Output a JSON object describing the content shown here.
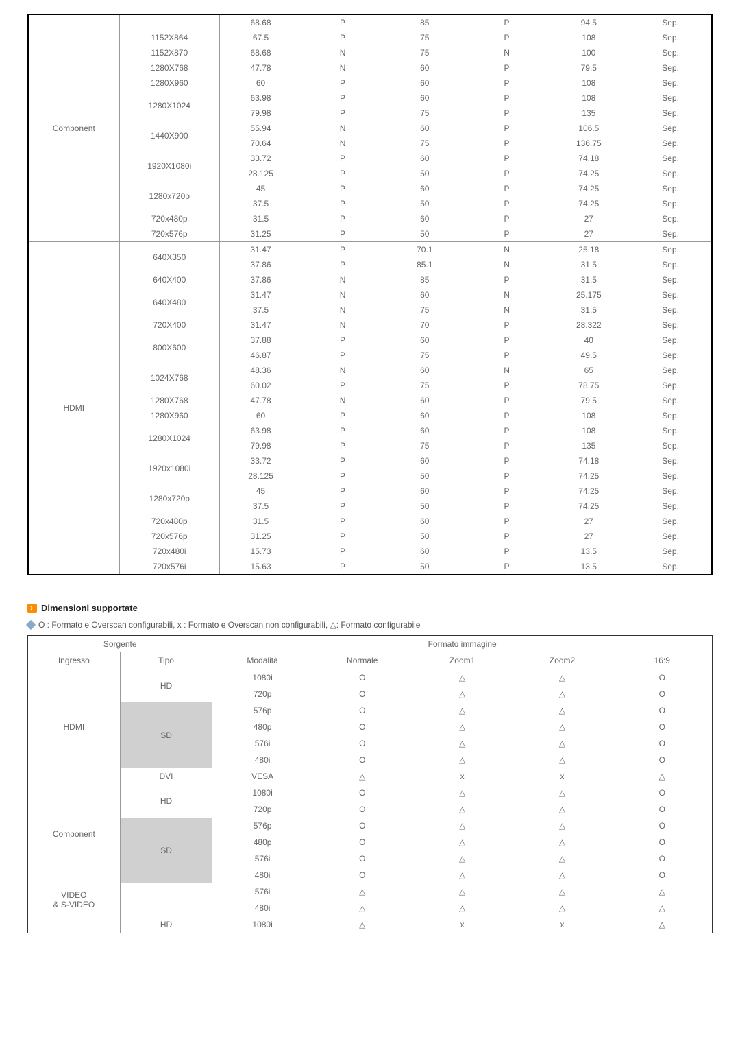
{
  "table1": {
    "groups": [
      {
        "label": "Component",
        "resolutions": [
          {
            "res": "",
            "rows": [
              [
                "68.68",
                "P",
                "85",
                "P",
                "94.5",
                "Sep."
              ]
            ]
          },
          {
            "res": "1152X864",
            "rows": [
              [
                "67.5",
                "P",
                "75",
                "P",
                "108",
                "Sep."
              ]
            ]
          },
          {
            "res": "1152X870",
            "rows": [
              [
                "68.68",
                "N",
                "75",
                "N",
                "100",
                "Sep."
              ]
            ]
          },
          {
            "res": "1280X768",
            "rows": [
              [
                "47.78",
                "N",
                "60",
                "P",
                "79.5",
                "Sep."
              ]
            ]
          },
          {
            "res": "1280X960",
            "rows": [
              [
                "60",
                "P",
                "60",
                "P",
                "108",
                "Sep."
              ]
            ]
          },
          {
            "res": "1280X1024",
            "rows": [
              [
                "63.98",
                "P",
                "60",
                "P",
                "108",
                "Sep."
              ],
              [
                "79.98",
                "P",
                "75",
                "P",
                "135",
                "Sep."
              ]
            ]
          },
          {
            "res": "1440X900",
            "rows": [
              [
                "55.94",
                "N",
                "60",
                "P",
                "106.5",
                "Sep."
              ],
              [
                "70.64",
                "N",
                "75",
                "P",
                "136.75",
                "Sep."
              ]
            ]
          },
          {
            "res": "1920X1080i",
            "rows": [
              [
                "33.72",
                "P",
                "60",
                "P",
                "74.18",
                "Sep."
              ],
              [
                "28.125",
                "P",
                "50",
                "P",
                "74.25",
                "Sep."
              ]
            ]
          },
          {
            "res": "1280x720p",
            "rows": [
              [
                "45",
                "P",
                "60",
                "P",
                "74.25",
                "Sep."
              ],
              [
                "37.5",
                "P",
                "50",
                "P",
                "74.25",
                "Sep."
              ]
            ]
          },
          {
            "res": "720x480p",
            "rows": [
              [
                "31.5",
                "P",
                "60",
                "P",
                "27",
                "Sep."
              ]
            ]
          },
          {
            "res": "720x576p",
            "rows": [
              [
                "31.25",
                "P",
                "50",
                "P",
                "27",
                "Sep."
              ]
            ]
          }
        ]
      },
      {
        "label": "HDMI",
        "resolutions": [
          {
            "res": "640X350",
            "rows": [
              [
                "31.47",
                "P",
                "70.1",
                "N",
                "25.18",
                "Sep."
              ],
              [
                "37.86",
                "P",
                "85.1",
                "N",
                "31.5",
                "Sep."
              ]
            ]
          },
          {
            "res": "640X400",
            "rows": [
              [
                "37.86",
                "N",
                "85",
                "P",
                "31.5",
                "Sep."
              ]
            ]
          },
          {
            "res": "640X480",
            "rows": [
              [
                "31.47",
                "N",
                "60",
                "N",
                "25.175",
                "Sep."
              ],
              [
                "37.5",
                "N",
                "75",
                "N",
                "31.5",
                "Sep."
              ]
            ]
          },
          {
            "res": "720X400",
            "rows": [
              [
                "31.47",
                "N",
                "70",
                "P",
                "28.322",
                "Sep."
              ]
            ]
          },
          {
            "res": "800X600",
            "rows": [
              [
                "37.88",
                "P",
                "60",
                "P",
                "40",
                "Sep."
              ],
              [
                "46.87",
                "P",
                "75",
                "P",
                "49.5",
                "Sep."
              ]
            ]
          },
          {
            "res": "1024X768",
            "rows": [
              [
                "48.36",
                "N",
                "60",
                "N",
                "65",
                "Sep."
              ],
              [
                "60.02",
                "P",
                "75",
                "P",
                "78.75",
                "Sep."
              ]
            ]
          },
          {
            "res": "1280X768",
            "rows": [
              [
                "47.78",
                "N",
                "60",
                "P",
                "79.5",
                "Sep."
              ]
            ]
          },
          {
            "res": "1280X960",
            "rows": [
              [
                "60",
                "P",
                "60",
                "P",
                "108",
                "Sep."
              ]
            ]
          },
          {
            "res": "1280X1024",
            "rows": [
              [
                "63.98",
                "P",
                "60",
                "P",
                "108",
                "Sep."
              ],
              [
                "79.98",
                "P",
                "75",
                "P",
                "135",
                "Sep."
              ]
            ]
          },
          {
            "res": "1920x1080i",
            "rows": [
              [
                "33.72",
                "P",
                "60",
                "P",
                "74.18",
                "Sep."
              ],
              [
                "28.125",
                "P",
                "50",
                "P",
                "74.25",
                "Sep."
              ]
            ]
          },
          {
            "res": "1280x720p",
            "rows": [
              [
                "45",
                "P",
                "60",
                "P",
                "74.25",
                "Sep."
              ],
              [
                "37.5",
                "P",
                "50",
                "P",
                "74.25",
                "Sep."
              ]
            ]
          },
          {
            "res": "720x480p",
            "rows": [
              [
                "31.5",
                "P",
                "60",
                "P",
                "27",
                "Sep."
              ]
            ]
          },
          {
            "res": "720x576p",
            "rows": [
              [
                "31.25",
                "P",
                "50",
                "P",
                "27",
                "Sep."
              ]
            ]
          },
          {
            "res": "720x480i",
            "rows": [
              [
                "15.73",
                "P",
                "60",
                "P",
                "13.5",
                "Sep."
              ]
            ]
          },
          {
            "res": "720x576i",
            "rows": [
              [
                "15.63",
                "P",
                "50",
                "P",
                "13.5",
                "Sep."
              ]
            ]
          }
        ]
      }
    ]
  },
  "section2": {
    "title": "Dimensioni supportate",
    "legend": "O : Formato e Overscan configurabili, x : Formato e Overscan non configurabili, △: Formato configurabile"
  },
  "table2": {
    "header1": [
      "Sorgente",
      "Formato immagine"
    ],
    "header2": [
      "Ingresso",
      "Tipo",
      "Modalità",
      "Normale",
      "Zoom1",
      "Zoom2",
      "16:9"
    ],
    "groups": [
      {
        "ingresso": "HDMI",
        "tipos": [
          {
            "tipo": "HD",
            "sd": false,
            "rows": [
              [
                "1080i",
                "O",
                "△",
                "△",
                "O"
              ],
              [
                "720p",
                "O",
                "△",
                "△",
                "O"
              ]
            ]
          },
          {
            "tipo": "SD",
            "sd": true,
            "rows": [
              [
                "576p",
                "O",
                "△",
                "△",
                "O"
              ],
              [
                "480p",
                "O",
                "△",
                "△",
                "O"
              ],
              [
                "576i",
                "O",
                "△",
                "△",
                "O"
              ],
              [
                "480i",
                "O",
                "△",
                "△",
                "O"
              ]
            ]
          },
          {
            "tipo": "DVI",
            "sd": false,
            "rows": [
              [
                "VESA",
                "△",
                "x",
                "x",
                "△"
              ]
            ]
          }
        ]
      },
      {
        "ingresso": "Component",
        "tipos": [
          {
            "tipo": "HD",
            "sd": false,
            "rows": [
              [
                "1080i",
                "O",
                "△",
                "△",
                "O"
              ],
              [
                "720p",
                "O",
                "△",
                "△",
                "O"
              ]
            ]
          },
          {
            "tipo": "SD",
            "sd": true,
            "rows": [
              [
                "576p",
                "O",
                "△",
                "△",
                "O"
              ],
              [
                "480p",
                "O",
                "△",
                "△",
                "O"
              ],
              [
                "576i",
                "O",
                "△",
                "△",
                "O"
              ],
              [
                "480i",
                "O",
                "△",
                "△",
                "O"
              ]
            ]
          }
        ]
      },
      {
        "ingresso": "VIDEO\n& S-VIDEO",
        "tipos": [
          {
            "tipo": "",
            "sd": false,
            "rows": [
              [
                "576i",
                "△",
                "△",
                "△",
                "△"
              ],
              [
                "480i",
                "△",
                "△",
                "△",
                "△"
              ]
            ]
          }
        ]
      },
      {
        "ingresso": "",
        "tipos": [
          {
            "tipo": "HD",
            "sd": false,
            "rows": [
              [
                "1080i",
                "△",
                "x",
                "x",
                "△"
              ]
            ]
          }
        ]
      }
    ]
  }
}
